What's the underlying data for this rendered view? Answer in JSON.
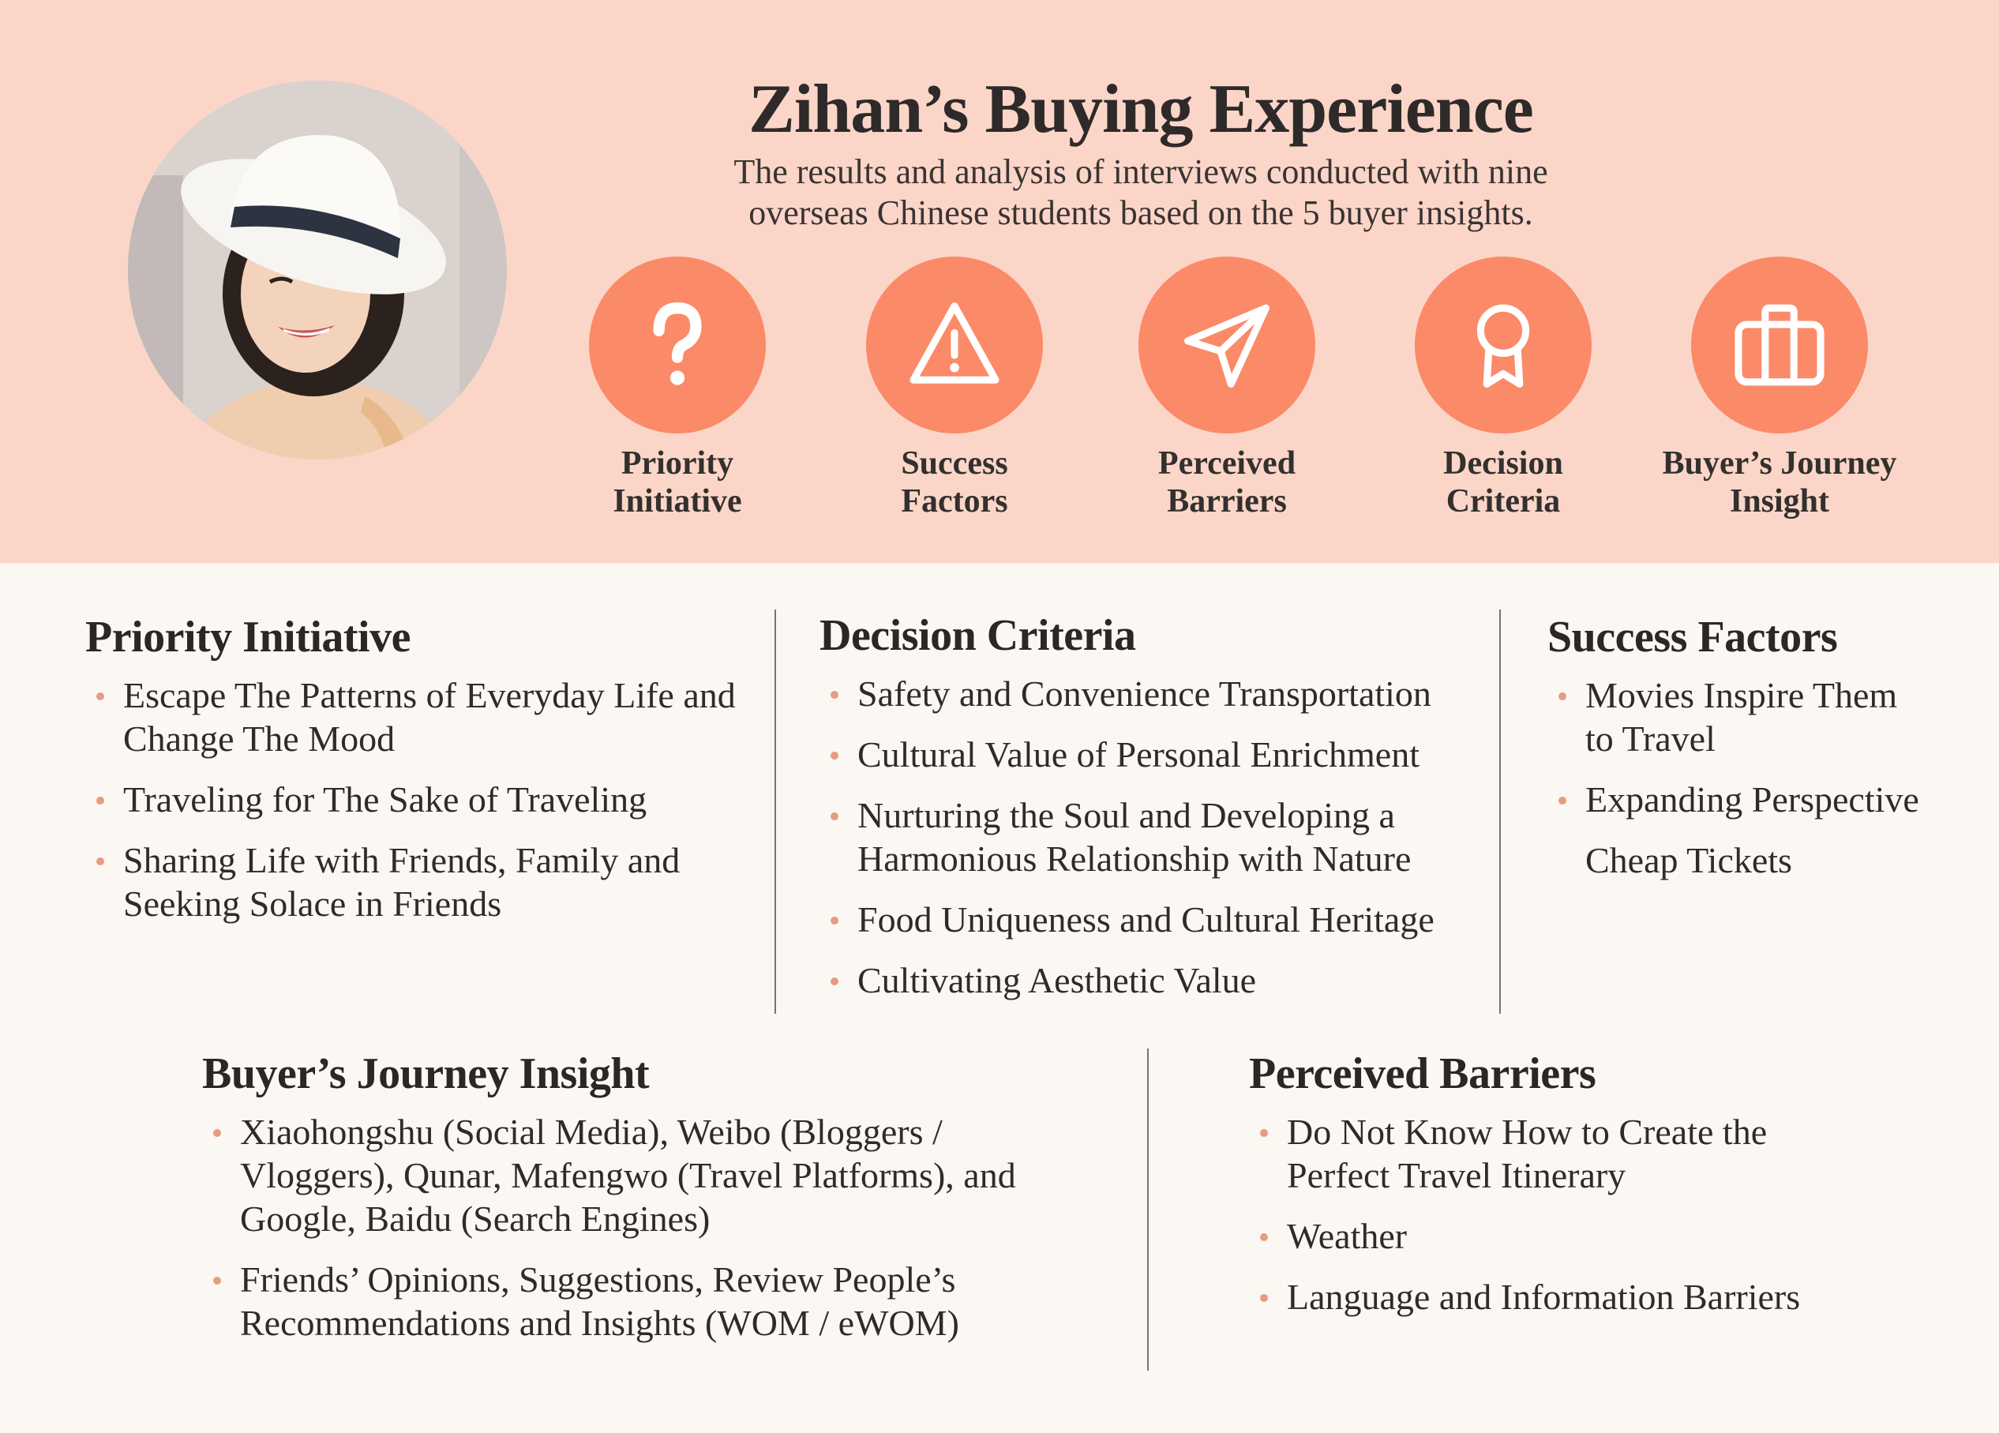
{
  "header": {
    "title": "Zihan’s Buying Experience",
    "subtitle_line1": "The results and analysis of interviews conducted with nine",
    "subtitle_line2": "overseas Chinese students based on the 5 buyer insights.",
    "accent_color": "#fb8a68",
    "band_color": "#fbd6c8"
  },
  "insights": [
    {
      "icon": "question-mark-icon",
      "line1": "Priority",
      "line2": "Initiative"
    },
    {
      "icon": "warning-icon",
      "line1": "Success",
      "line2": "Factors"
    },
    {
      "icon": "paper-plane-icon",
      "line1": "Perceived",
      "line2": "Barriers"
    },
    {
      "icon": "award-ribbon-icon",
      "line1": "Decision",
      "line2": "Criteria"
    },
    {
      "icon": "briefcase-icon",
      "line1": "Buyer’s Journey",
      "line2": "Insight"
    }
  ],
  "priority_initiative": {
    "heading": "Priority Initiative",
    "items": [
      {
        "l1": "Escape The Patterns of Everyday Life and",
        "l2": "Change The Mood"
      },
      {
        "l1": "Traveling for The Sake of Traveling",
        "l2": ""
      },
      {
        "l1": "Sharing Life with Friends, Family and",
        "l2": "Seeking Solace in Friends"
      }
    ]
  },
  "decision_criteria": {
    "heading": "Decision Criteria",
    "items": [
      {
        "l1": "Safety and Convenience Transportation",
        "l2": ""
      },
      {
        "l1": "Cultural Value of Personal Enrichment",
        "l2": ""
      },
      {
        "l1": "Nurturing the Soul and Developing a",
        "l2": "Harmonious Relationship with Nature"
      },
      {
        "l1": "Food Uniqueness and Cultural Heritage",
        "l2": ""
      },
      {
        "l1": "Cultivating Aesthetic Value",
        "l2": ""
      }
    ]
  },
  "success_factors": {
    "heading": "Success Factors",
    "items": [
      {
        "l1": "Movies Inspire Them",
        "l2": "to Travel"
      },
      {
        "l1": "Expanding Perspective",
        "l2": ""
      },
      {
        "l1": "Cheap Tickets",
        "l2": ""
      }
    ]
  },
  "buyers_journey": {
    "heading": "Buyer’s Journey Insight",
    "items": [
      {
        "l1": "Xiaohongshu (Social Media), Weibo (Bloggers /",
        "l2": "Vloggers), Qunar, Mafengwo (Travel Platforms), and",
        "l3": "Google, Baidu (Search Engines)"
      },
      {
        "l1": "Friends’ Opinions, Suggestions, Review People’s",
        "l2": "Recommendations and Insights (WOM / eWOM)",
        "l3": ""
      }
    ]
  },
  "perceived_barriers": {
    "heading": "Perceived Barriers",
    "items": [
      {
        "l1": "Do Not Know How to Create the",
        "l2": "Perfect Travel Itinerary"
      },
      {
        "l1": "Weather",
        "l2": ""
      },
      {
        "l1": "Language and Information Barriers",
        "l2": ""
      }
    ]
  }
}
